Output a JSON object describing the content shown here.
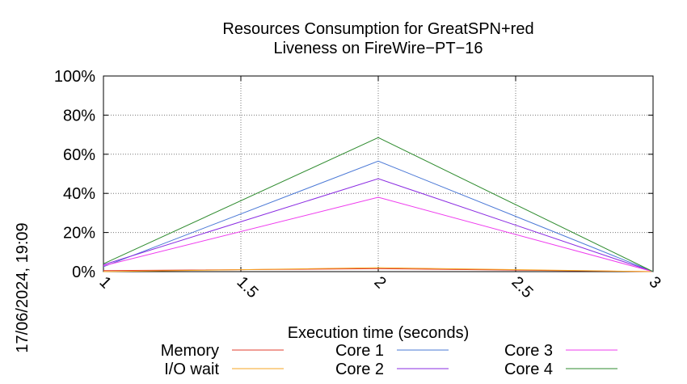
{
  "chart_data": {
    "type": "line",
    "title_lines": [
      "Resources Consumption for GreatSPN+red",
      "Liveness on FireWire−PT−16"
    ],
    "xlabel": "Execution time (seconds)",
    "ylabel": "",
    "side_label": "17/06/2024, 19:09",
    "x": [
      1,
      2,
      3
    ],
    "xlim": [
      1,
      3
    ],
    "ylim": [
      0,
      100
    ],
    "x_ticks": [
      1,
      1.5,
      2,
      2.5,
      3
    ],
    "x_tick_labels": [
      "1",
      "1.5",
      "2",
      "2.5",
      "3"
    ],
    "y_ticks": [
      0,
      20,
      40,
      60,
      80,
      100
    ],
    "y_tick_labels": [
      "0%",
      "20%",
      "40%",
      "60%",
      "80%",
      "100%"
    ],
    "grid": true,
    "legend_position": "bottom",
    "series": [
      {
        "name": "Memory",
        "color": "#e03c2c",
        "values": [
          0.5,
          1.5,
          0
        ]
      },
      {
        "name": "I/O wait",
        "color": "#f5a623",
        "values": [
          0,
          2,
          0
        ]
      },
      {
        "name": "Core 1",
        "color": "#4a78d6",
        "values": [
          2.5,
          56.5,
          0
        ]
      },
      {
        "name": "Core 2",
        "color": "#8a2be2",
        "values": [
          3.5,
          47.5,
          0
        ]
      },
      {
        "name": "Core 3",
        "color": "#ee3bee",
        "values": [
          3,
          38,
          0
        ]
      },
      {
        "name": "Core 4",
        "color": "#2e8b2e",
        "values": [
          4,
          68.5,
          0
        ]
      }
    ]
  }
}
